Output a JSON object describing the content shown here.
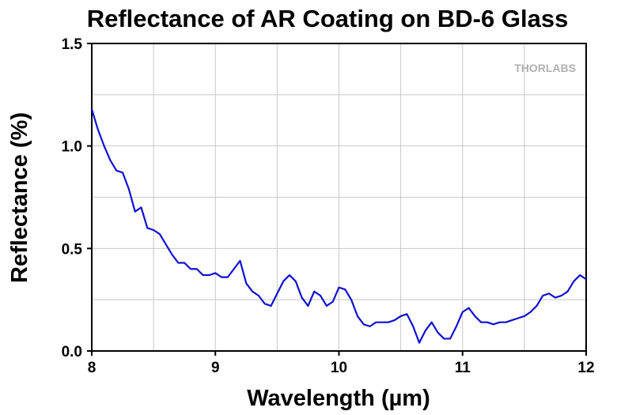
{
  "chart_data": {
    "type": "line",
    "title": "Reflectance of AR Coating on BD-6 Glass",
    "x_label": "Wavelength (µm)",
    "y_label": "Reflectance (%)",
    "watermark": "THORLABS",
    "xlim": [
      8,
      12
    ],
    "xticks": [
      8,
      9,
      10,
      11,
      12
    ],
    "xminorticks": [
      8.5,
      9.5,
      10.5,
      11.5
    ],
    "ylim": [
      0,
      1.5
    ],
    "yticks": [
      {
        "value": 0,
        "label": "0.0"
      },
      0.5,
      {
        "value": 1,
        "label": "1.0"
      },
      1.5
    ],
    "yminorticks": [
      0.25,
      0.75,
      1.25
    ],
    "grid": true,
    "x": [
      8.0,
      8.05,
      8.1,
      8.15,
      8.2,
      8.25,
      8.3,
      8.35,
      8.4,
      8.45,
      8.5,
      8.55,
      8.6,
      8.65,
      8.7,
      8.75,
      8.8,
      8.85,
      8.9,
      8.95,
      9.0,
      9.05,
      9.1,
      9.15,
      9.2,
      9.25,
      9.3,
      9.35,
      9.4,
      9.45,
      9.5,
      9.55,
      9.6,
      9.65,
      9.7,
      9.75,
      9.8,
      9.85,
      9.9,
      9.95,
      10.0,
      10.05,
      10.1,
      10.15,
      10.2,
      10.25,
      10.3,
      10.35,
      10.4,
      10.45,
      10.5,
      10.55,
      10.6,
      10.65,
      10.7,
      10.75,
      10.8,
      10.85,
      10.9,
      10.95,
      11.0,
      11.05,
      11.1,
      11.15,
      11.2,
      11.25,
      11.3,
      11.35,
      11.4,
      11.45,
      11.5,
      11.55,
      11.6,
      11.65,
      11.7,
      11.75,
      11.8,
      11.85,
      11.9,
      11.95,
      12.0
    ],
    "series": [
      {
        "color": "#1010d0",
        "values": [
          1.18,
          1.08,
          1.0,
          0.93,
          0.88,
          0.87,
          0.79,
          0.68,
          0.7,
          0.6,
          0.59,
          0.57,
          0.52,
          0.47,
          0.43,
          0.43,
          0.4,
          0.4,
          0.37,
          0.37,
          0.38,
          0.36,
          0.36,
          0.4,
          0.44,
          0.33,
          0.29,
          0.27,
          0.23,
          0.22,
          0.28,
          0.34,
          0.37,
          0.34,
          0.26,
          0.22,
          0.29,
          0.27,
          0.22,
          0.24,
          0.31,
          0.3,
          0.25,
          0.17,
          0.13,
          0.12,
          0.14,
          0.14,
          0.14,
          0.15,
          0.17,
          0.18,
          0.12,
          0.04,
          0.1,
          0.14,
          0.09,
          0.06,
          0.06,
          0.12,
          0.19,
          0.21,
          0.17,
          0.14,
          0.14,
          0.13,
          0.14,
          0.14,
          0.15,
          0.16,
          0.17,
          0.19,
          0.22,
          0.27,
          0.28,
          0.26,
          0.27,
          0.29,
          0.34,
          0.37,
          0.35
        ]
      }
    ]
  }
}
